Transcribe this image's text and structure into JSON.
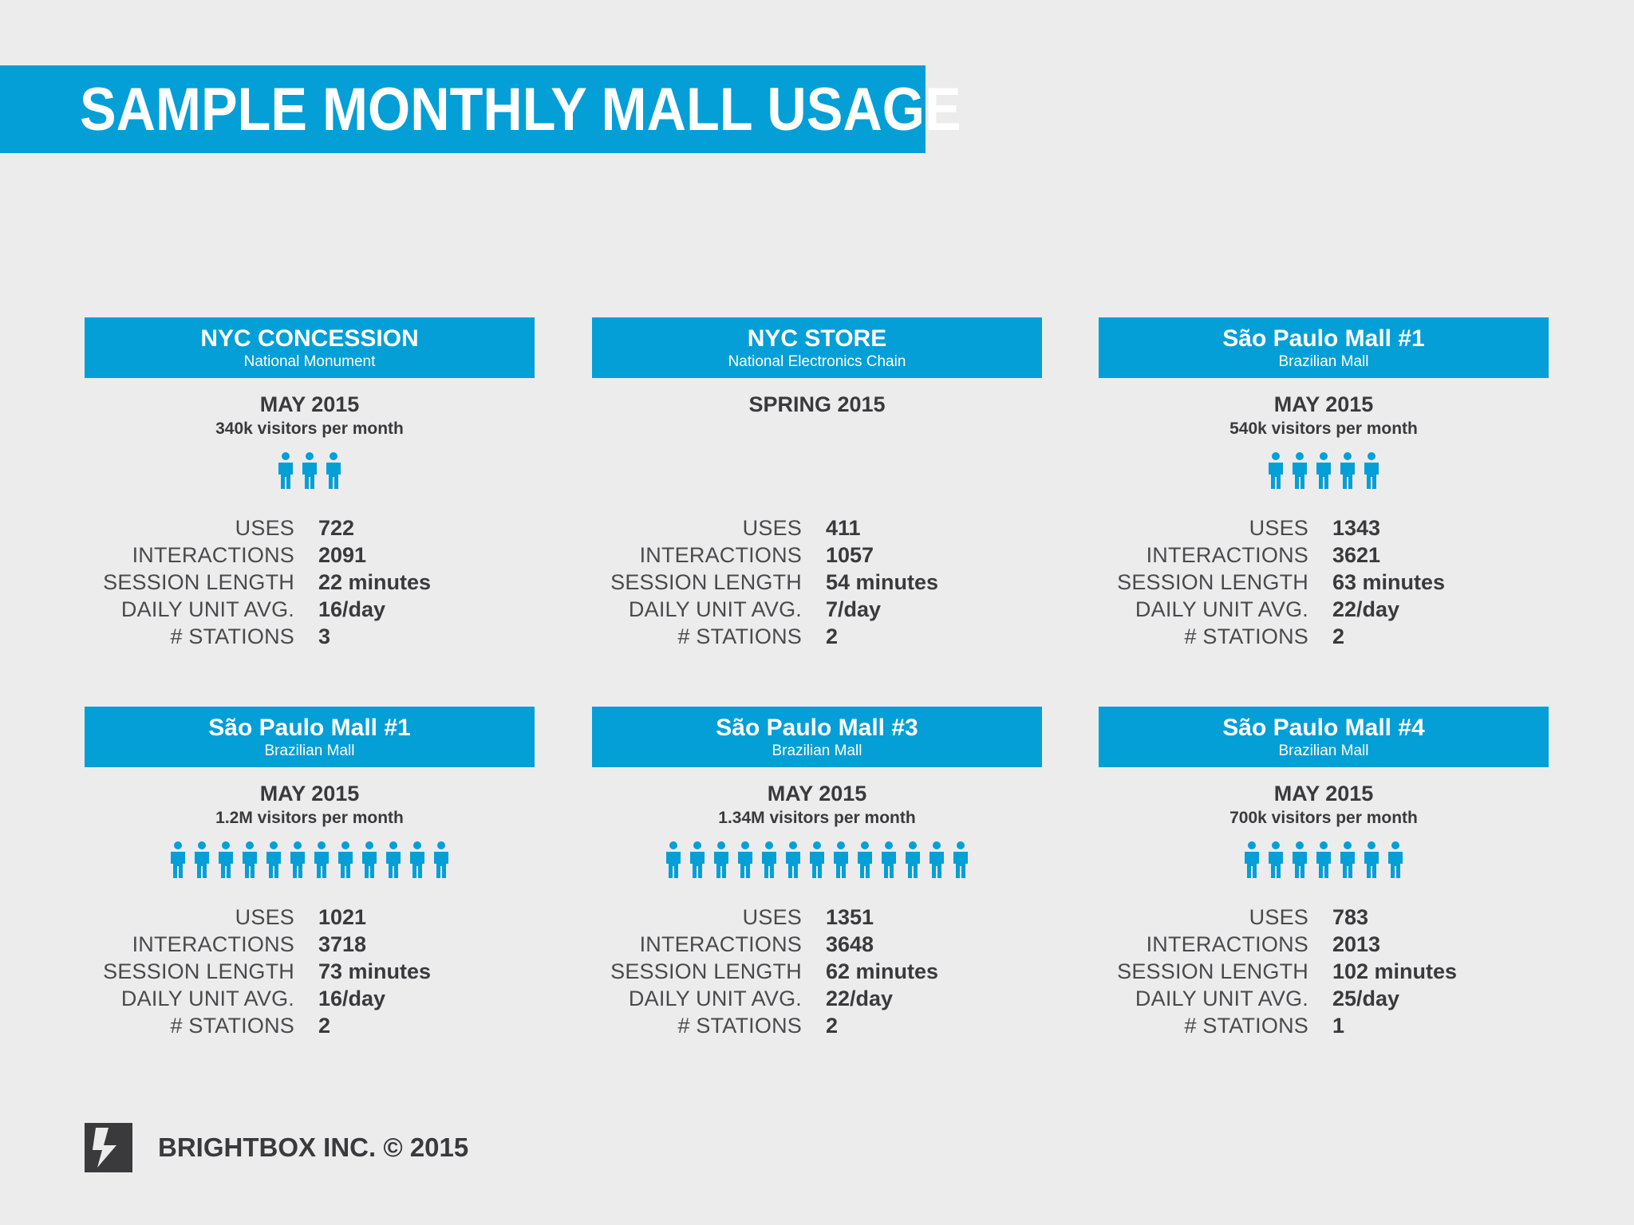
{
  "page": {
    "title": "SAMPLE MONTHLY MALL USAGE",
    "accent_color": "#049fd6",
    "background_color": "#ececed"
  },
  "stat_labels": {
    "uses": "USES",
    "interactions": "INTERACTIONS",
    "session_length": "SESSION LENGTH",
    "daily_unit_avg": "DAILY UNIT AVG.",
    "stations": "# STATIONS"
  },
  "cards": [
    {
      "name": "NYC CONCESSION",
      "subtitle": "National Monument",
      "period": "MAY 2015",
      "visitors": "340k visitors per month",
      "person_icon_count": 3,
      "stats": {
        "uses": "722",
        "interactions": "2091",
        "session_length": "22 minutes",
        "daily_unit_avg": "16/day",
        "stations": "3"
      }
    },
    {
      "name": "NYC STORE",
      "subtitle": "National Electronics Chain",
      "period": "SPRING 2015",
      "visitors": "",
      "person_icon_count": 0,
      "stats": {
        "uses": "411",
        "interactions": "1057",
        "session_length": "54 minutes",
        "daily_unit_avg": "7/day",
        "stations": "2"
      }
    },
    {
      "name": "São Paulo Mall #1",
      "subtitle": "Brazilian Mall",
      "period": "MAY 2015",
      "visitors": "540k visitors per month",
      "person_icon_count": 5,
      "stats": {
        "uses": "1343",
        "interactions": "3621",
        "session_length": "63 minutes",
        "daily_unit_avg": "22/day",
        "stations": "2"
      }
    },
    {
      "name": "São Paulo Mall #1",
      "subtitle": "Brazilian Mall",
      "period": "MAY 2015",
      "visitors": "1.2M visitors per month",
      "person_icon_count": 12,
      "stats": {
        "uses": "1021",
        "interactions": "3718",
        "session_length": "73 minutes",
        "daily_unit_avg": "16/day",
        "stations": "2"
      }
    },
    {
      "name": "São Paulo Mall #3",
      "subtitle": "Brazilian Mall",
      "period": "MAY 2015",
      "visitors": "1.34M visitors per month",
      "person_icon_count": 13,
      "stats": {
        "uses": "1351",
        "interactions": "3648",
        "session_length": "62 minutes",
        "daily_unit_avg": "22/day",
        "stations": "2"
      }
    },
    {
      "name": "São Paulo Mall #4",
      "subtitle": "Brazilian Mall",
      "period": "MAY 2015",
      "visitors": "700k visitors per month",
      "person_icon_count": 7,
      "stats": {
        "uses": "783",
        "interactions": "2013",
        "session_length": "102 minutes",
        "daily_unit_avg": "25/day",
        "stations": "1"
      }
    }
  ],
  "footer": {
    "logo_icon": "lightning-bolt-icon",
    "company": "BRIGHTBOX INC.  © 2015"
  }
}
